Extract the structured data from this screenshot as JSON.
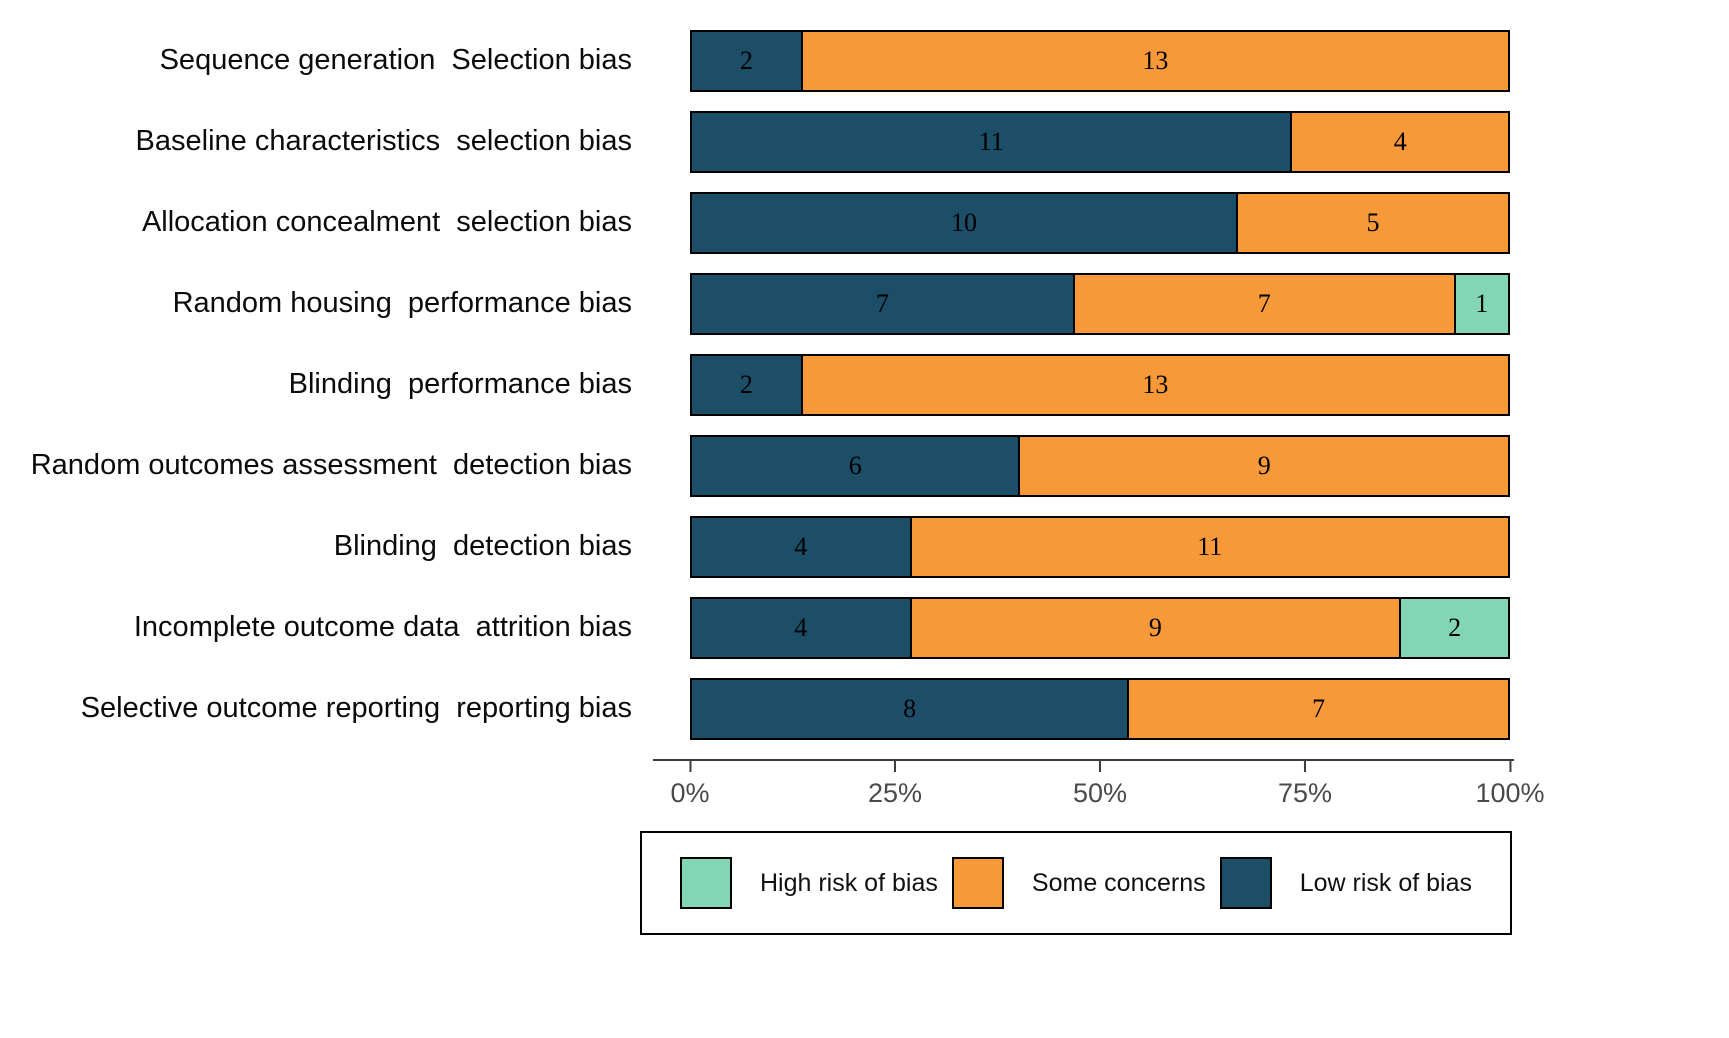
{
  "chart_data": {
    "type": "bar",
    "orientation": "horizontal",
    "stacked": true,
    "total_per_row": 15,
    "title": "",
    "xlabel": "",
    "ylabel": "",
    "xlim": [
      0,
      100
    ],
    "grid": false,
    "categories": [
      "Sequence generation  Selection bias",
      "Baseline characteristics  selection bias",
      "Allocation concealment  selection bias",
      "Random housing  performance bias",
      "Blinding  performance bias",
      "Random outcomes assessment  detection bias",
      "Blinding  detection bias",
      "Incomplete outcome data  attrition bias",
      "Selective outcome reporting  reporting bias"
    ],
    "series": [
      {
        "name": "Low risk of bias",
        "color": "#1c4e68",
        "values": [
          2,
          11,
          10,
          7,
          2,
          6,
          4,
          4,
          8
        ]
      },
      {
        "name": "Some concerns",
        "color": "#f89939",
        "values": [
          13,
          4,
          5,
          7,
          13,
          9,
          11,
          9,
          7
        ]
      },
      {
        "name": "High risk of bias",
        "color": "#82d6b5",
        "values": [
          0,
          0,
          0,
          1,
          0,
          0,
          0,
          2,
          0
        ]
      }
    ],
    "x_ticks": [
      "0%",
      "25%",
      "50%",
      "75%",
      "100%"
    ],
    "legend_position": "bottom",
    "legend": [
      {
        "label": "High risk of bias",
        "color": "#82d6b5"
      },
      {
        "label": "Some concerns",
        "color": "#f89939"
      },
      {
        "label": "Low risk of bias",
        "color": "#1c4e68"
      }
    ]
  }
}
